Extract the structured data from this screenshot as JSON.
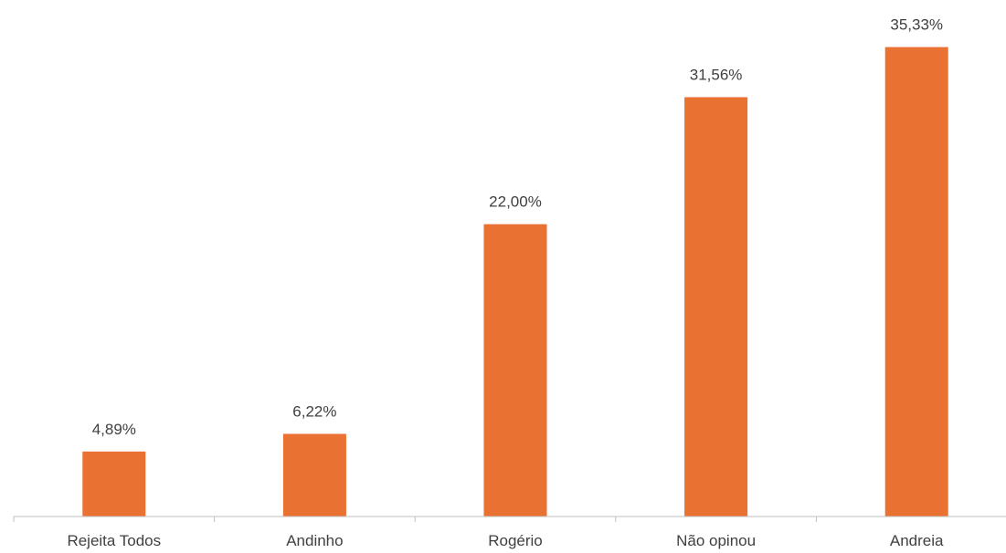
{
  "chart_data": {
    "type": "bar",
    "categories": [
      "Rejeita Todos",
      "Andinho",
      "Rogério",
      "Não opinou",
      "Andreia"
    ],
    "values": [
      4.89,
      6.22,
      22.0,
      31.56,
      35.33
    ],
    "data_labels": [
      "4,89%",
      "6,22%",
      "22,00%",
      "31,56%",
      "35,33%"
    ],
    "title": "",
    "xlabel": "",
    "ylabel": "",
    "ylim": [
      0,
      36
    ],
    "grid": false,
    "legend": "none",
    "colors": {
      "bar": "#E97132",
      "axis": "#BFBFBF",
      "text": "#404040"
    }
  }
}
